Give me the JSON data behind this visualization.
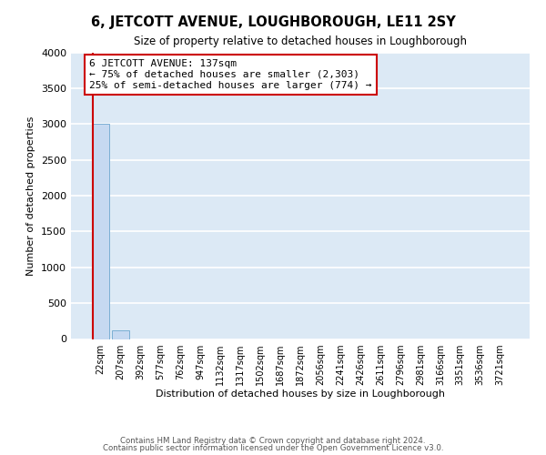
{
  "title": "6, JETCOTT AVENUE, LOUGHBOROUGH, LE11 2SY",
  "subtitle": "Size of property relative to detached houses in Loughborough",
  "xlabel": "Distribution of detached houses by size in Loughborough",
  "ylabel": "Number of detached properties",
  "bar_labels": [
    "22sqm",
    "207sqm",
    "392sqm",
    "577sqm",
    "762sqm",
    "947sqm",
    "1132sqm",
    "1317sqm",
    "1502sqm",
    "1687sqm",
    "1872sqm",
    "2056sqm",
    "2241sqm",
    "2426sqm",
    "2611sqm",
    "2796sqm",
    "2981sqm",
    "3166sqm",
    "3351sqm",
    "3536sqm",
    "3721sqm"
  ],
  "bar_values": [
    3000,
    120,
    0,
    0,
    0,
    0,
    0,
    0,
    0,
    0,
    0,
    0,
    0,
    0,
    0,
    0,
    0,
    0,
    0,
    0,
    0
  ],
  "ylim": [
    0,
    4000
  ],
  "yticks": [
    0,
    500,
    1000,
    1500,
    2000,
    2500,
    3000,
    3500,
    4000
  ],
  "bar_color": "#c6d9f1",
  "bar_edge_color": "#7bafd4",
  "property_line_color": "#cc0000",
  "annotation_title": "6 JETCOTT AVENUE: 137sqm",
  "annotation_line1": "← 75% of detached houses are smaller (2,303)",
  "annotation_line2": "25% of semi-detached houses are larger (774) →",
  "annotation_box_color": "#ffffff",
  "annotation_box_edge": "#cc0000",
  "bg_color": "#dce9f5",
  "grid_color": "#ffffff",
  "fig_bg": "#ffffff",
  "footer_line1": "Contains HM Land Registry data © Crown copyright and database right 2024.",
  "footer_line2": "Contains public sector information licensed under the Open Government Licence v3.0."
}
